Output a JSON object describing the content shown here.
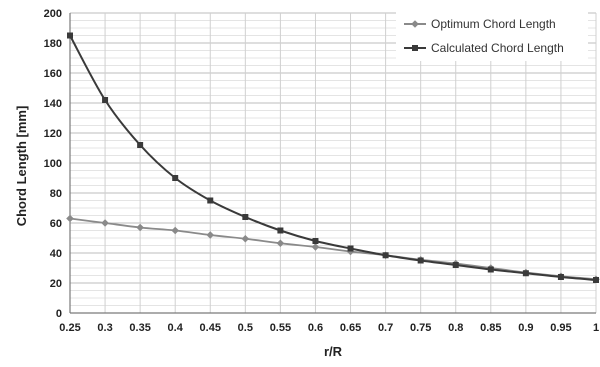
{
  "chart_data": {
    "type": "line",
    "xlabel": "r/R",
    "ylabel": "Chord Length [mm]",
    "x": [
      0.25,
      0.3,
      0.35,
      0.4,
      0.45,
      0.5,
      0.55,
      0.6,
      0.65,
      0.7,
      0.75,
      0.8,
      0.85,
      0.9,
      0.95,
      1
    ],
    "x_tick_labels": [
      "0.25",
      "0.3",
      "0.35",
      "0.4",
      "0.45",
      "0.5",
      "0.55",
      "0.6",
      "0.65",
      "0.7",
      "0.75",
      "0.8",
      "0.85",
      "0.9",
      "0.95",
      "1"
    ],
    "ylim": [
      0,
      200
    ],
    "y_ticks": [
      0,
      20,
      40,
      60,
      80,
      100,
      120,
      140,
      160,
      180,
      200
    ],
    "grid": true,
    "legend_position": "top-right",
    "series": [
      {
        "name": "Optimum Chord Length",
        "color": "#8a8a8a",
        "marker": "diamond",
        "values": [
          63,
          60,
          57,
          55,
          52,
          49.5,
          46.5,
          44,
          41,
          38.5,
          35.5,
          33,
          30,
          27,
          24.5,
          22.5
        ]
      },
      {
        "name": "Calculated Chord Length",
        "color": "#3a3a3a",
        "marker": "square",
        "values": [
          185,
          142,
          112,
          90,
          75,
          64,
          55,
          48,
          43,
          38.5,
          35,
          32,
          29,
          26.5,
          24,
          22
        ]
      }
    ]
  }
}
